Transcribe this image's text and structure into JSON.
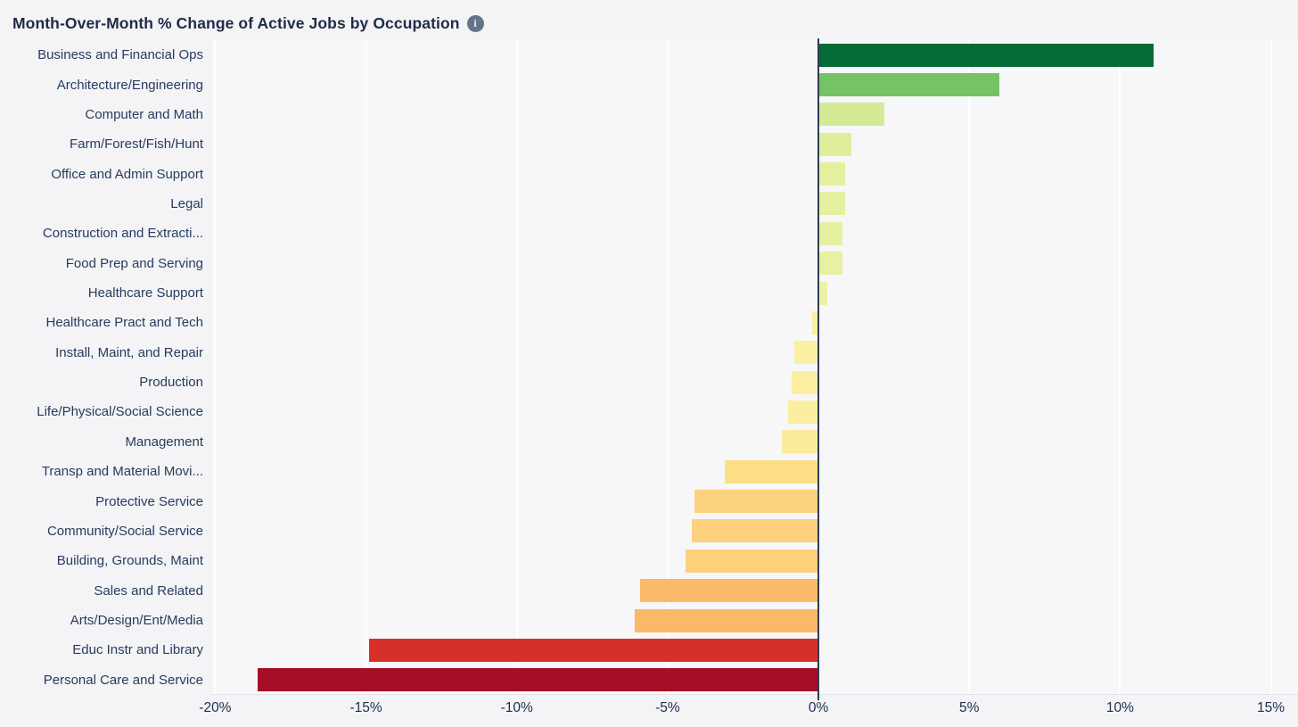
{
  "header": {
    "title": "Month-Over-Month % Change of Active Jobs by Occupation",
    "info_glyph": "i"
  },
  "colors": {
    "page_background": "#f4f4f6",
    "plot_background": "#f7f7f9",
    "gridline": "#ffffff",
    "zero_line": "#2e3d55",
    "title_text": "#1f2c46",
    "label_text": "#263c5e",
    "info_badge": "#64748b"
  },
  "chart_data": {
    "type": "bar",
    "orientation": "horizontal",
    "title": "Month-Over-Month % Change of Active Jobs by Occupation",
    "xlabel": "",
    "ylabel": "",
    "grid": true,
    "legend": false,
    "xlim": [
      -20.1,
      15.9
    ],
    "x_ticks": [
      -20,
      -15,
      -10,
      -5,
      0,
      5,
      10,
      15
    ],
    "x_tick_labels": [
      "-20%",
      "-15%",
      "-10%",
      "-5%",
      "0%",
      "5%",
      "10%",
      "15%"
    ],
    "value_unit": "% month-over-month change",
    "categories": [
      "Business and Financial Ops",
      "Architecture/Engineering",
      "Computer and Math",
      "Farm/Forest/Fish/Hunt",
      "Office and Admin Support",
      "Legal",
      "Construction and Extracti...",
      "Food Prep and Serving",
      "Healthcare Support",
      "Healthcare Pract and Tech",
      "Install, Maint, and Repair",
      "Production",
      "Life/Physical/Social Science",
      "Management",
      "Transp and Material Movi...",
      "Protective Service",
      "Community/Social Service",
      "Building, Grounds, Maint",
      "Sales and Related",
      "Arts/Design/Ent/Media",
      "Educ Instr and Library",
      "Personal Care and Service"
    ],
    "values": [
      11.1,
      6.0,
      2.2,
      1.1,
      0.9,
      0.9,
      0.8,
      0.8,
      0.3,
      -0.2,
      -0.8,
      -0.9,
      -1.0,
      -1.2,
      -3.1,
      -4.1,
      -4.2,
      -4.4,
      -5.9,
      -6.1,
      -14.9,
      -18.6
    ],
    "bar_colors": [
      "#046b37",
      "#74c466",
      "#d5ea94",
      "#e0ee9b",
      "#e4f09e",
      "#e5f09e",
      "#e6f1a0",
      "#e8f1a1",
      "#edf3a6",
      "#f7f0a6",
      "#fbf0a2",
      "#fbefa1",
      "#fbeea0",
      "#fbec9d",
      "#fcdf85",
      "#fdd27e",
      "#fdd17d",
      "#fdd07c",
      "#fbba67",
      "#fab966",
      "#d7302a",
      "#a50e26"
    ]
  }
}
